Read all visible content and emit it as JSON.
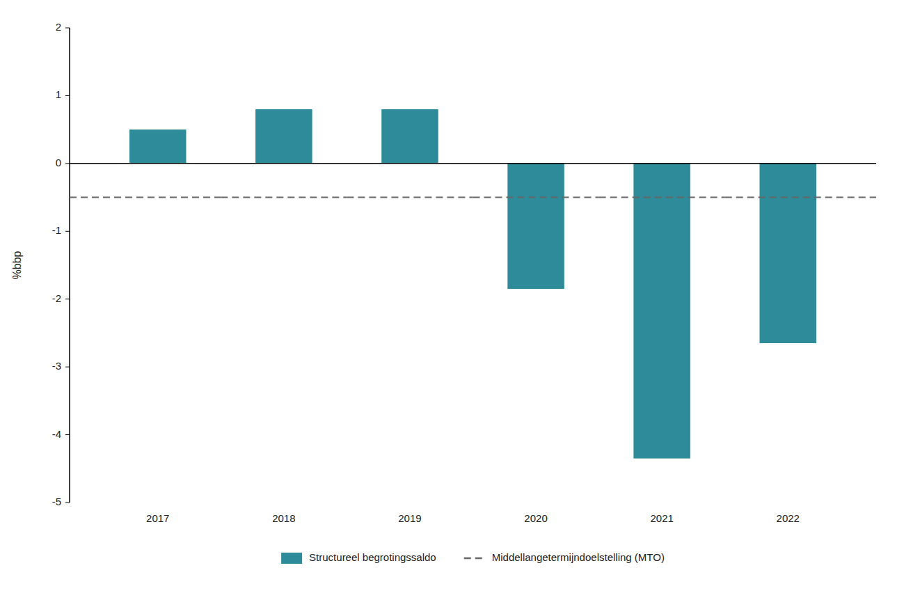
{
  "chart_data": {
    "type": "bar",
    "ylabel": "%bbp",
    "categories": [
      "2017",
      "2018",
      "2019",
      "2020",
      "2021",
      "2022"
    ],
    "series": [
      {
        "name": "Structureel begrotingssaldo",
        "type": "bar",
        "color": "#2e8b9a",
        "values": [
          0.5,
          0.8,
          0.8,
          -1.85,
          -4.35,
          -2.65
        ]
      },
      {
        "name": "Middellangetermijndoelstelling (MTO)",
        "type": "line",
        "line_style": "dashed",
        "color": "#666666",
        "values": [
          -0.5,
          -0.5,
          -0.5,
          -0.5,
          -0.5,
          -0.5
        ]
      }
    ],
    "ylim": [
      -5,
      2
    ],
    "yticks": [
      -5,
      -4,
      -3,
      -2,
      -1,
      0,
      1,
      2
    ],
    "grid": false,
    "legend": "bottom"
  }
}
